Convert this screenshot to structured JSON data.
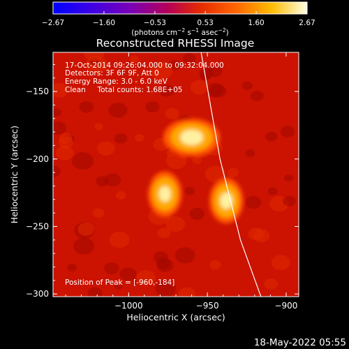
{
  "chart_data": {
    "type": "heatmap",
    "title": "Reconstructed RHESSI Image",
    "xlabel": "Heliocentric X (arcsec)",
    "ylabel": "Heliocentric Y (arcsec)",
    "xlim": [
      -1048,
      -892
    ],
    "ylim": [
      -302,
      -121
    ],
    "x_ticks": [
      -1000,
      -950,
      -900
    ],
    "x_tick_labels": [
      "−1000",
      "−950",
      "−900"
    ],
    "y_ticks": [
      -150,
      -200,
      -250,
      -300
    ],
    "y_tick_labels": [
      "−150",
      "−200",
      "−250",
      "−300"
    ],
    "colorbar": {
      "range": [
        -2.67,
        2.67
      ],
      "ticks": [
        -2.67,
        -1.6,
        -0.53,
        0.53,
        1.6,
        2.67
      ],
      "tick_labels": [
        "−2.67",
        "−1.60",
        "−0.53",
        "0.53",
        "1.60",
        "2.67"
      ],
      "unit_main": "(photons cm",
      "unit_exp1": "−2",
      "unit_mid1": " s",
      "unit_exp2": "−1",
      "unit_mid2": " asec",
      "unit_exp3": "−2",
      "unit_end": ")"
    },
    "info_lines": [
      "17-Oct-2014 09:26:04.000 to 09:32:04.000",
      "Detectors: 3F 6F 9F, Att 0",
      "Energy Range: 3.0 - 6.0 keV",
      "Clean     Total counts: 1.68E+05"
    ],
    "peak_label": "Position of Peak = [-960,-184]",
    "sources": [
      {
        "x": -960,
        "y": -184,
        "peak": 1.0
      },
      {
        "x": -977,
        "y": -226,
        "peak": 0.86
      },
      {
        "x": -938,
        "y": -231,
        "peak": 0.9
      }
    ],
    "limb_curve": [
      [
        -954,
        -121
      ],
      [
        -942,
        -200
      ],
      [
        -929,
        -260
      ],
      [
        -916,
        -302
      ]
    ]
  },
  "footer_date": "18-May-2022 05:55"
}
